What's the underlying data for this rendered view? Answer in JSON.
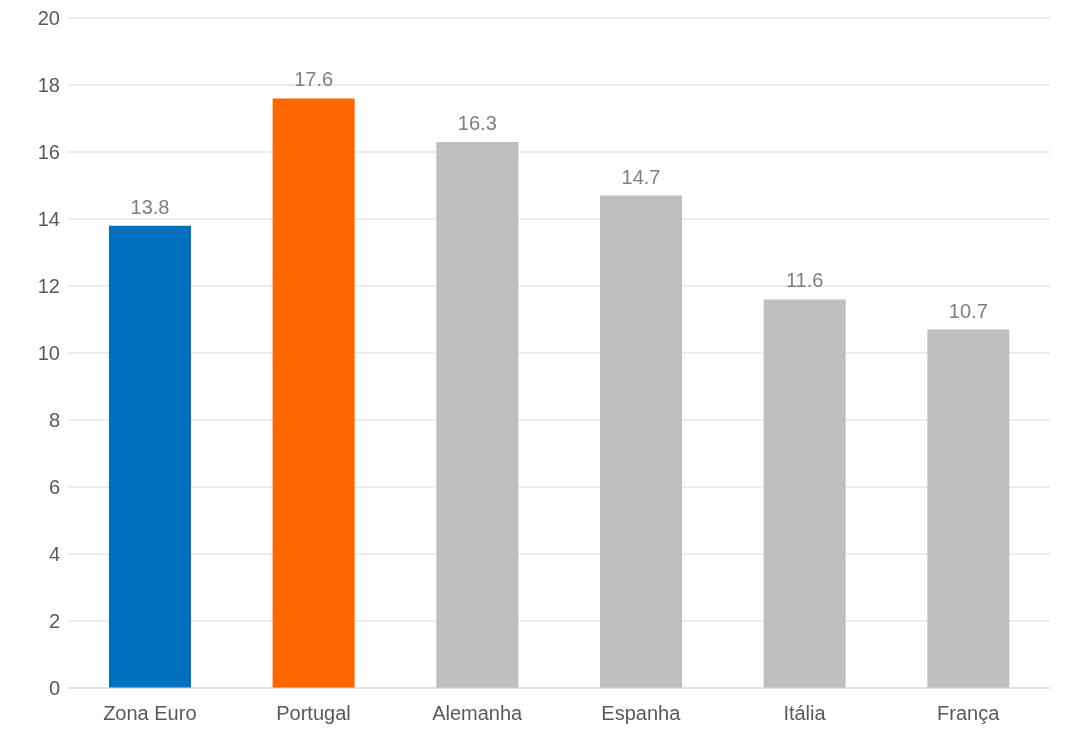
{
  "chart_data": {
    "type": "bar",
    "categories": [
      "Zona Euro",
      "Portugal",
      "Alemanha",
      "Espanha",
      "Itália",
      "França"
    ],
    "values": [
      13.8,
      17.6,
      16.3,
      14.7,
      11.6,
      10.7
    ],
    "colors": [
      "#0070c0",
      "#ff6600",
      "#bfbfbf",
      "#bfbfbf",
      "#bfbfbf",
      "#bfbfbf"
    ],
    "ylim": [
      0,
      20
    ],
    "yticks": [
      0,
      2,
      4,
      6,
      8,
      10,
      12,
      14,
      16,
      18,
      20
    ],
    "grid": "y",
    "data_labels": true,
    "legend": false
  }
}
